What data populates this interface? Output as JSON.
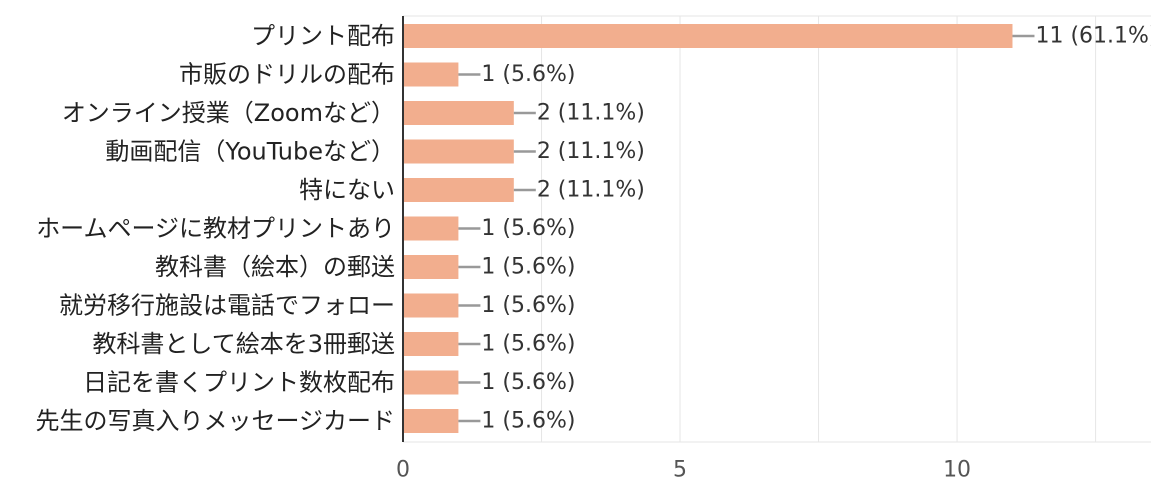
{
  "chart_data": {
    "type": "bar",
    "orientation": "horizontal",
    "categories": [
      "プリント配布",
      "市販のドリルの配布",
      "オンライン授業（Zoomなど）",
      "動画配信（YouTubeなど）",
      "特にない",
      "ホームページに教材プリントあり",
      "教科書（絵本）の郵送",
      "就労移行施設は電話でフォロー",
      "教科書として絵本を3冊郵送",
      "日記を書くプリント数枚配布",
      "先生の写真入りメッセージカード"
    ],
    "values": [
      11,
      1,
      2,
      2,
      2,
      1,
      1,
      1,
      1,
      1,
      1
    ],
    "data_labels": [
      "11 (61.1%)",
      "1 (5.6%)",
      "2 (11.1%)",
      "2 (11.1%)",
      "2 (11.1%)",
      "1 (5.6%)",
      "1 (5.6%)",
      "1 (5.6%)",
      "1 (5.6%)",
      "1 (5.6%)",
      "1 (5.6%)"
    ],
    "x_ticks": [
      0,
      5,
      10
    ],
    "x_tick_labels": [
      "0",
      "5",
      "10"
    ],
    "xlim": [
      0,
      13.5
    ],
    "grid": true,
    "colors": {
      "bar": "#f2ae8e",
      "grid": "#e6e6e6",
      "axis": "#333333",
      "leader": "#999999"
    }
  }
}
